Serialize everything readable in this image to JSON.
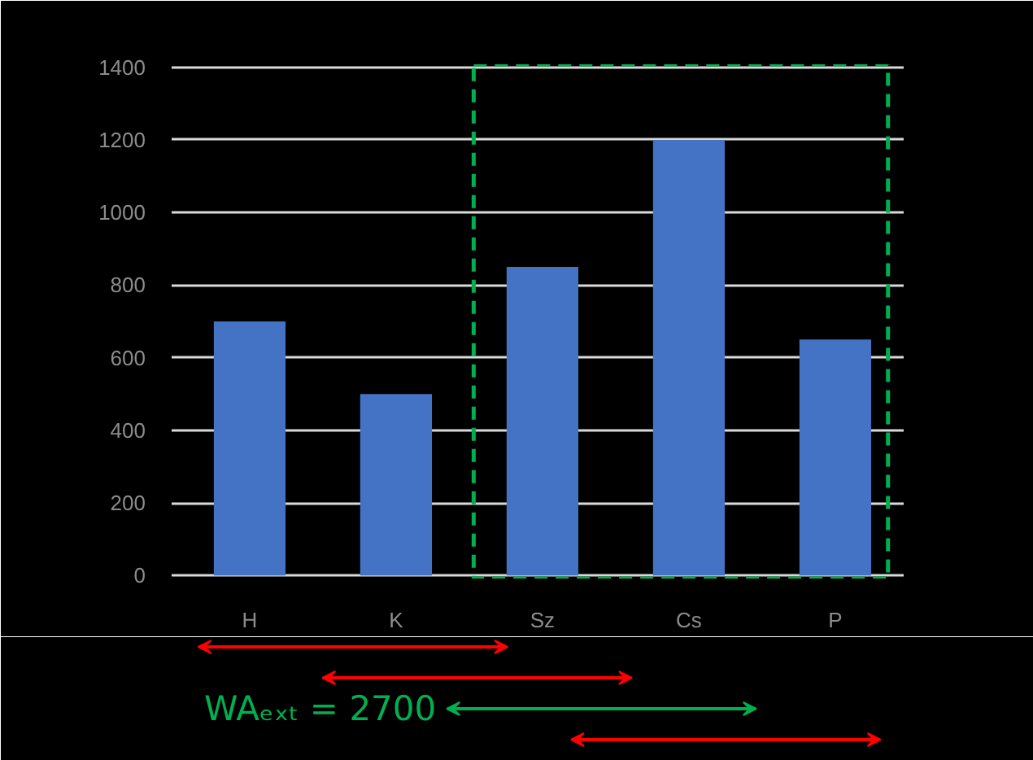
{
  "chart_data": {
    "type": "bar",
    "categories": [
      "H",
      "K",
      "Sz",
      "Cs",
      "P"
    ],
    "values": [
      700,
      500,
      850,
      1200,
      650
    ],
    "color": "#4472c4",
    "ylim": [
      0,
      1400
    ],
    "yticks": [
      0,
      200,
      400,
      600,
      800,
      1000,
      1200,
      1400
    ],
    "grid": "y",
    "annotations": [
      "WAₑₓₜ = 2700"
    ]
  }
}
